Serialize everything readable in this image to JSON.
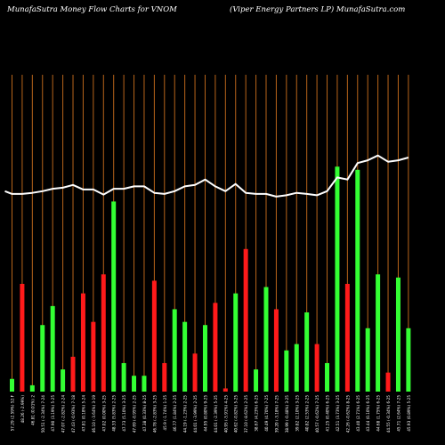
{
  "header": {
    "title_left": "MunafaSutra  Money Flow  Charts for VNOM",
    "title_right": "(Viper Energy Partners LP) MunafaSutra.com"
  },
  "colors": {
    "background": "#000000",
    "grid": "#b8651a",
    "up_bar": "#33ff33",
    "down_bar": "#ff1a1a",
    "line": "#ffffff",
    "label": "#ffffff"
  },
  "chart_data": {
    "type": "bar",
    "title": "",
    "grid": true,
    "bar_values_scale": [
      0,
      100
    ],
    "line_values_scale": [
      0,
      100
    ],
    "bars": [
      {
        "value": 4,
        "direction": "up"
      },
      {
        "value": 34,
        "direction": "down"
      },
      {
        "value": 2,
        "direction": "up"
      },
      {
        "value": 21,
        "direction": "up"
      },
      {
        "value": 27,
        "direction": "up"
      },
      {
        "value": 7,
        "direction": "up"
      },
      {
        "value": 11,
        "direction": "down"
      },
      {
        "value": 31,
        "direction": "down"
      },
      {
        "value": 22,
        "direction": "down"
      },
      {
        "value": 37,
        "direction": "down"
      },
      {
        "value": 60,
        "direction": "up"
      },
      {
        "value": 9,
        "direction": "up"
      },
      {
        "value": 5,
        "direction": "up"
      },
      {
        "value": 5,
        "direction": "up"
      },
      {
        "value": 35,
        "direction": "down"
      },
      {
        "value": 9,
        "direction": "down"
      },
      {
        "value": 26,
        "direction": "up"
      },
      {
        "value": 22,
        "direction": "up"
      },
      {
        "value": 12,
        "direction": "down"
      },
      {
        "value": 21,
        "direction": "up"
      },
      {
        "value": 28,
        "direction": "down"
      },
      {
        "value": 1,
        "direction": "down"
      },
      {
        "value": 31,
        "direction": "up"
      },
      {
        "value": 45,
        "direction": "down"
      },
      {
        "value": 7,
        "direction": "up"
      },
      {
        "value": 33,
        "direction": "up"
      },
      {
        "value": 26,
        "direction": "down"
      },
      {
        "value": 13,
        "direction": "up"
      },
      {
        "value": 15,
        "direction": "up"
      },
      {
        "value": 25,
        "direction": "up"
      },
      {
        "value": 15,
        "direction": "down"
      },
      {
        "value": 9,
        "direction": "up"
      },
      {
        "value": 71,
        "direction": "up"
      },
      {
        "value": 34,
        "direction": "down"
      },
      {
        "value": 70,
        "direction": "up"
      },
      {
        "value": 20,
        "direction": "up"
      },
      {
        "value": 37,
        "direction": "up"
      },
      {
        "value": 6,
        "direction": "down"
      },
      {
        "value": 36,
        "direction": "up"
      },
      {
        "value": 20,
        "direction": "up"
      }
    ],
    "line": [
      [
        -0.7,
        58.5
      ],
      [
        0,
        57.7
      ],
      [
        1,
        57.7
      ],
      [
        2,
        58
      ],
      [
        3,
        58.5
      ],
      [
        4,
        59.2
      ],
      [
        5,
        59.5
      ],
      [
        6,
        60.3
      ],
      [
        7,
        59
      ],
      [
        8,
        59
      ],
      [
        9,
        57.5
      ],
      [
        10,
        59.2
      ],
      [
        11,
        59.2
      ],
      [
        12,
        59.9
      ],
      [
        13,
        59.9
      ],
      [
        14,
        58
      ],
      [
        15,
        57.7
      ],
      [
        16,
        58.5
      ],
      [
        17,
        59.9
      ],
      [
        18,
        60.3
      ],
      [
        19,
        61.9
      ],
      [
        20,
        59.9
      ],
      [
        21,
        58.5
      ],
      [
        22,
        60.6
      ],
      [
        23,
        58
      ],
      [
        24,
        57.7
      ],
      [
        25,
        57.7
      ],
      [
        26,
        56.9
      ],
      [
        27,
        57.3
      ],
      [
        28,
        58
      ],
      [
        29,
        57.7
      ],
      [
        30,
        57.3
      ],
      [
        31,
        58.5
      ],
      [
        32,
        62.5
      ],
      [
        33,
        61.9
      ],
      [
        34,
        66.7
      ],
      [
        35,
        67.5
      ],
      [
        36,
        68.9
      ],
      [
        37,
        67.1
      ],
      [
        38,
        67.5
      ],
      [
        39,
        68.3
      ]
    ],
    "x_labels": [
      "57.29 (2.59%) 52:F",
      "48.26 (-2.99%)",
      "46.81 (0.01%) 2",
      "50.51 (-2.34%) 7-24",
      "47.90 (3.19%) 5-25",
      "47.07 (-2.82%) 2-24",
      "47.43 (-0.93%) 7-18",
      "47.81 (0.18%) 5-24",
      "46.10 (-3.64%) 3-19",
      "47.02 (0.00%) 3-25",
      "48.33 (5.83%) 2-25",
      "47.73 (5.10%) 3-25",
      "47.69 (-0.95%) 2-25",
      "47.38 (0.33%) 8-25",
      "46.78 (-2.83%) 3-25",
      "45.9 (-1.74%) 1-25",
      "46.77 (1.84%) 2-25",
      "44.19 (-1.23%) 2-25",
      "44.01 (-3.99%) 2-25",
      "44.95 (0.80%) 9-25",
      "44.01 (-2.39%) 5-25",
      "40.95 (-5.91%) 4-25",
      "40.62 (-0.82%) 5-25",
      "37.10 (-8.62%) 2-25",
      "38.67 (4.23%) 6-25",
      "40.49 (4.70%) 7-25",
      "39.20 (-3.18%) 7-25",
      "38.99 (-0.48%) 3-25",
      "39.82 (2.10%) 3-25",
      "40.82 (2.53%) 2-25",
      "40.57 (-0.62%) 7-25",
      "41.25 (0.40%) 6-25",
      "42.51 (3.73%) 3-25",
      "42.26 (-0.62%) 8-25",
      "43.40 (2.71%) 6-25",
      "43.44 (0.10%) 6-25",
      "44.68 (1.75%) 6-25",
      "44.55 (-0.34%) 6-25",
      "45.71 (2.64%) 7-25",
      "45.93 (0.89%) 5-25"
    ]
  }
}
